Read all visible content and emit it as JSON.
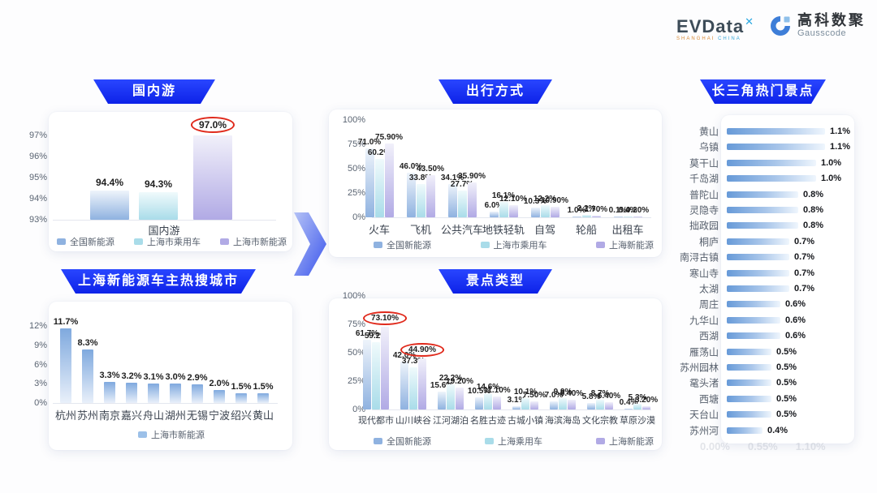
{
  "header": {
    "evdata_text": "EVData",
    "evdata_sup": "✕",
    "evdata_sub_left": "SHANGHAI",
    "evdata_sub_right": "CHINA",
    "gauss_cn": "高科数聚",
    "gauss_en": "Gausscode"
  },
  "palette": {
    "banner_blue": "#1d34f0",
    "circle_red": "#e02a1c",
    "series_blue": "#8fb2e0",
    "series_cyan": "#a9dce9",
    "series_purple": "#b1aae5",
    "city_blue": "#7fa9de",
    "hbar_blue": "#679ad8"
  },
  "footer_faint": [
    "0.00%",
    "0.55%",
    "1.10%"
  ],
  "chart_data": [
    {
      "id": "domestic",
      "type": "bar",
      "title": "国内游",
      "xlabel": "国内游",
      "categories": [
        "国内游"
      ],
      "yticks": [
        "93%",
        "94%",
        "95%",
        "96%",
        "97%"
      ],
      "ytick_values": [
        93,
        94,
        95,
        96,
        97
      ],
      "ylim": [
        93,
        97.6
      ],
      "series": [
        {
          "name": "全国新能源",
          "color": "blue",
          "values": [
            94.4
          ],
          "labels": [
            "94.4%"
          ]
        },
        {
          "name": "上海市乘用车",
          "color": "cyan",
          "values": [
            94.3
          ],
          "labels": [
            "94.3%"
          ]
        },
        {
          "name": "上海市新能源",
          "color": "purple",
          "values": [
            97.0
          ],
          "labels": [
            "97.0%"
          ],
          "circled": [
            0
          ]
        }
      ]
    },
    {
      "id": "cities",
      "type": "bar",
      "title": "上海新能源车主热搜城市",
      "categories": [
        "杭州",
        "苏州",
        "南京",
        "嘉兴",
        "舟山",
        "湖州",
        "无锡",
        "宁波",
        "绍兴",
        "黄山"
      ],
      "yticks": [
        "0%",
        "3%",
        "6%",
        "9%",
        "12%"
      ],
      "ytick_values": [
        0,
        3,
        6,
        9,
        12
      ],
      "ylim": [
        0,
        15
      ],
      "series": [
        {
          "name": "上海市新能源",
          "color": "city",
          "values": [
            11.7,
            8.3,
            3.3,
            3.2,
            3.1,
            3.0,
            2.9,
            2.0,
            1.5,
            1.5
          ],
          "labels": [
            "11.7%",
            "8.3%",
            "3.3%",
            "3.2%",
            "3.1%",
            "3.0%",
            "2.9%",
            "2.0%",
            "1.5%",
            "1.5%"
          ]
        }
      ]
    },
    {
      "id": "transport",
      "type": "bar",
      "title": "出行方式",
      "categories": [
        "火车",
        "飞机",
        "公共汽车",
        "地铁轻轨",
        "自驾",
        "轮船",
        "出租车"
      ],
      "yticks": [
        "0%",
        "25%",
        "50%",
        "75%",
        "100%"
      ],
      "ytick_values": [
        0,
        25,
        50,
        75,
        100
      ],
      "ylim": [
        0,
        100
      ],
      "series": [
        {
          "name": "全国新能源",
          "color": "blue",
          "values": [
            71.0,
            46.0,
            34.1,
            6.0,
            10.3,
            1.0,
            0.1
          ],
          "labels": [
            "71.0%",
            "46.0%",
            "34.1%",
            "6.0%",
            "10.3%",
            "1.0%",
            "0.1%"
          ]
        },
        {
          "name": "上海市乘用车",
          "color": "cyan",
          "values": [
            60.2,
            33.8,
            27.7,
            16.1,
            12.2,
            2.2,
            0.4
          ],
          "labels": [
            "60.2%",
            "33.8%",
            "27.7%",
            "16.1%",
            "12.2%",
            "2.2%",
            "0.4%"
          ]
        },
        {
          "name": "上海新能源",
          "color": "purple",
          "values": [
            75.9,
            43.5,
            35.9,
            12.1,
            10.9,
            1.7,
            0.2
          ],
          "labels": [
            "75.90%",
            "43.50%",
            "35.90%",
            "12.10%",
            "10.90%",
            "1.70%",
            "0.20%"
          ]
        }
      ]
    },
    {
      "id": "attractions",
      "type": "bar",
      "title": "景点类型",
      "categories": [
        "现代都市",
        "山川峡谷",
        "江河湖泊",
        "名胜古迹",
        "古城小镇",
        "海滨海岛",
        "文化宗教",
        "草原沙漠"
      ],
      "yticks": [
        "0%",
        "25%",
        "50%",
        "75%",
        "100%"
      ],
      "ytick_values": [
        0,
        25,
        50,
        75,
        100
      ],
      "ylim": [
        0,
        100
      ],
      "series": [
        {
          "name": "全国新能源",
          "color": "blue",
          "values": [
            61.7,
            42.0,
            15.6,
            10.5,
            3.1,
            7.0,
            5.8,
            0.4
          ],
          "labels": [
            "61.7%",
            "42.0%",
            "15.6%",
            "10.5%",
            "3.1%",
            "7.0%",
            "5.8%",
            "0.4%"
          ]
        },
        {
          "name": "上海乘用车",
          "color": "cyan",
          "values": [
            59.2,
            37.3,
            22.2,
            14.6,
            10.1,
            9.9,
            8.7,
            5.3
          ],
          "labels": [
            "59.2%",
            "37.3%",
            "22.2%",
            "14.6%",
            "10.1%",
            "9.9%",
            "8.7%",
            "5.3%"
          ]
        },
        {
          "name": "上海新能源",
          "color": "purple",
          "values": [
            73.1,
            44.9,
            19.2,
            11.1,
            7.5,
            8.4,
            6.4,
            3.2
          ],
          "labels": [
            "73.10%",
            "44.90%",
            "19.20%",
            "11.10%",
            "7.50%",
            "8.40%",
            "6.40%",
            "3.20%"
          ],
          "circled": [
            0,
            1
          ]
        }
      ]
    },
    {
      "id": "hotspots",
      "type": "hbar",
      "title": "长三角热门景点",
      "xmax": 1.35,
      "items": [
        {
          "name": "黄山",
          "value": 1.1,
          "label": "1.1%"
        },
        {
          "name": "乌镇",
          "value": 1.1,
          "label": "1.1%"
        },
        {
          "name": "莫干山",
          "value": 1.0,
          "label": "1.0%"
        },
        {
          "name": "千岛湖",
          "value": 1.0,
          "label": "1.0%"
        },
        {
          "name": "普陀山",
          "value": 0.8,
          "label": "0.8%"
        },
        {
          "name": "灵隐寺",
          "value": 0.8,
          "label": "0.8%"
        },
        {
          "name": "拙政园",
          "value": 0.8,
          "label": "0.8%"
        },
        {
          "name": "桐庐",
          "value": 0.7,
          "label": "0.7%"
        },
        {
          "name": "南浔古镇",
          "value": 0.7,
          "label": "0.7%"
        },
        {
          "name": "寒山寺",
          "value": 0.7,
          "label": "0.7%"
        },
        {
          "name": "太湖",
          "value": 0.7,
          "label": "0.7%"
        },
        {
          "name": "周庄",
          "value": 0.6,
          "label": "0.6%"
        },
        {
          "name": "九华山",
          "value": 0.6,
          "label": "0.6%"
        },
        {
          "name": "西湖",
          "value": 0.6,
          "label": "0.6%"
        },
        {
          "name": "雁荡山",
          "value": 0.5,
          "label": "0.5%"
        },
        {
          "name": "苏州园林",
          "value": 0.5,
          "label": "0.5%"
        },
        {
          "name": "鼋头渚",
          "value": 0.5,
          "label": "0.5%"
        },
        {
          "name": "西塘",
          "value": 0.5,
          "label": "0.5%"
        },
        {
          "name": "天台山",
          "value": 0.5,
          "label": "0.5%"
        },
        {
          "name": "苏州河",
          "value": 0.4,
          "label": "0.4%"
        }
      ]
    }
  ]
}
